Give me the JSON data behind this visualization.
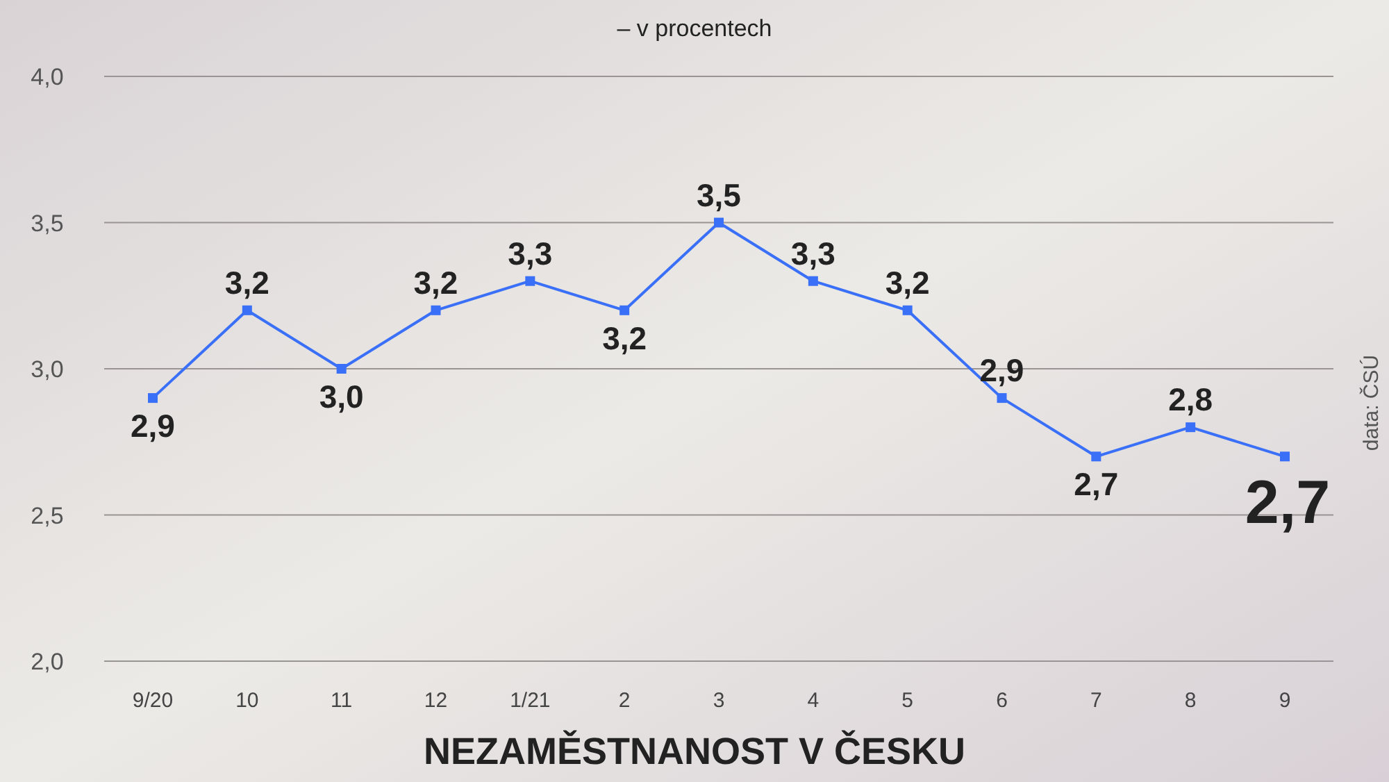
{
  "chart_data": {
    "type": "line",
    "title": "NEZAMĚSTNANOST V ČESKU",
    "subtitle": "– v procentech",
    "annotations": [
      "data: ČSÚ"
    ],
    "categories": [
      "9/20",
      "10",
      "11",
      "12",
      "1/21",
      "2",
      "3",
      "4",
      "5",
      "6",
      "7",
      "8",
      "9"
    ],
    "series": [
      {
        "color": "#3a6ff7",
        "values": [
          2.9,
          3.2,
          3.0,
          3.2,
          3.3,
          3.2,
          3.5,
          3.3,
          3.2,
          2.9,
          2.7,
          2.8,
          2.7
        ],
        "value_labels": [
          "2,9",
          "3,2",
          "3,0",
          "3,2",
          "3,3",
          "3,2",
          "3,5",
          "3,3",
          "3,2",
          "2,9",
          "2,7",
          "2,8",
          "2,7"
        ]
      }
    ],
    "ylim": [
      2,
      4
    ],
    "yticks": [
      {
        "value": 2,
        "label": "2,0"
      },
      {
        "value": 2.5,
        "label": "2,5"
      },
      {
        "value": 3,
        "label": "3,0"
      },
      {
        "value": 3.5,
        "label": "3,5"
      },
      {
        "value": 4,
        "label": "4,0"
      }
    ],
    "grid": "y",
    "marker": "square",
    "line_style": "solid"
  }
}
